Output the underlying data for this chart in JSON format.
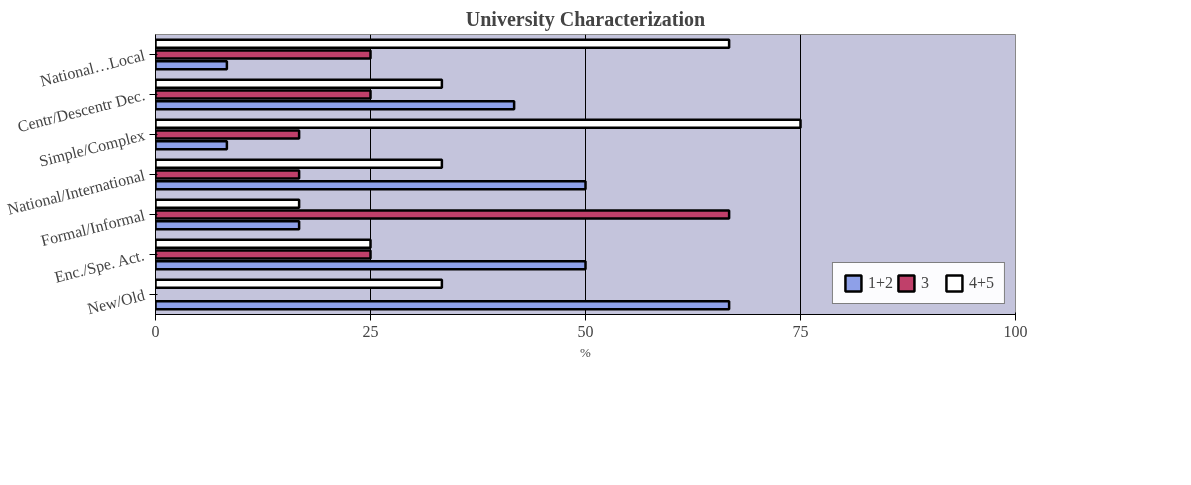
{
  "chart_data": {
    "type": "bar",
    "orientation": "horizontal",
    "title": "University Characterization",
    "xlabel": "%",
    "categories": [
      "National…Local",
      "Centr/Descentr Dec.",
      "Simple/Complex",
      "National/International",
      "Formal/Informal",
      "Enc./Spe. Act.",
      "New/Old"
    ],
    "series": [
      {
        "name": "1+2",
        "color": "#8ea0e8",
        "values": [
          8.3,
          41.7,
          8.3,
          50,
          16.7,
          50,
          66.7
        ]
      },
      {
        "name": "3",
        "color": "#c0406a",
        "values": [
          25,
          25,
          16.7,
          16.7,
          66.7,
          25,
          0
        ]
      },
      {
        "name": "4+5",
        "color": "#ffffff",
        "values": [
          66.7,
          33.3,
          75,
          33.3,
          16.7,
          25,
          33.3
        ]
      }
    ],
    "xlim": [
      0,
      100
    ],
    "xticks": [
      0,
      25,
      50,
      75,
      100
    ],
    "grid": "x",
    "legend": "bottom right"
  }
}
